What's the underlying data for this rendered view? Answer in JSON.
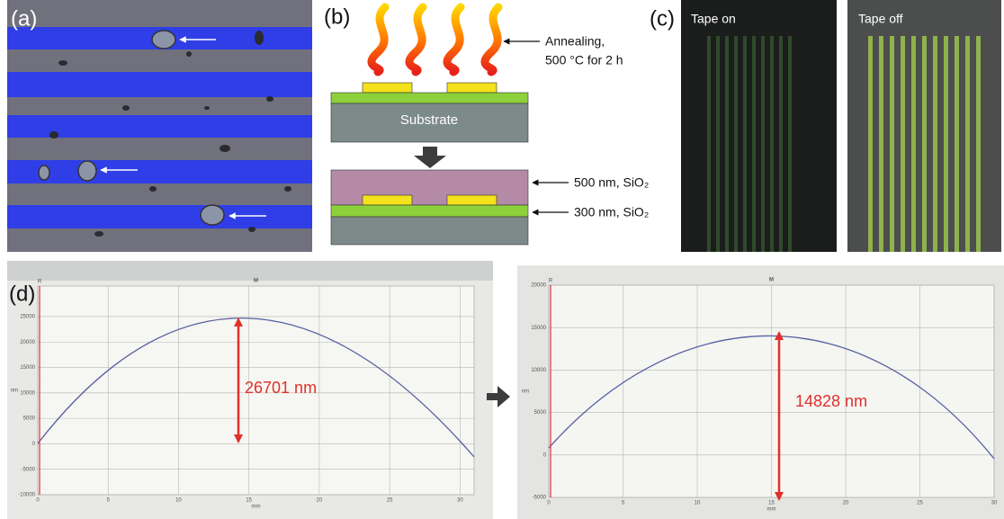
{
  "panel_a": {
    "label": "(a)"
  },
  "panel_b": {
    "label": "(b)",
    "annealing_line1": "Annealing,",
    "annealing_line2": "500 °C for 2 h",
    "substrate": "Substrate",
    "top_layer": "500 nm, SiO₂",
    "bottom_layer": "300 nm, SiO₂"
  },
  "panel_c": {
    "label": "(c)",
    "left_caption": "Tape on",
    "right_caption": "Tape off"
  },
  "panel_d": {
    "label": "(d)",
    "plots": [
      {
        "marker": "M",
        "ref": "R",
        "x_unit": "mm",
        "y_unit": "nm",
        "xlim": [
          0,
          31
        ],
        "ylim": [
          -10000,
          31000
        ],
        "xticks": [
          0,
          5,
          10,
          15,
          20,
          25,
          30
        ],
        "yticks": [
          -10000,
          -5000,
          0,
          5000,
          10000,
          15000,
          20000,
          25000
        ],
        "annotation": "26701 nm"
      },
      {
        "marker": "M",
        "ref": "R",
        "x_unit": "mm",
        "y_unit": "nm",
        "xlim": [
          0,
          30
        ],
        "ylim": [
          -5000,
          20000
        ],
        "xticks": [
          0,
          5,
          10,
          15,
          20,
          25,
          30
        ],
        "yticks": [
          -5000,
          0,
          5000,
          10000,
          15000,
          20000
        ],
        "annotation": "14828 nm"
      }
    ]
  }
}
